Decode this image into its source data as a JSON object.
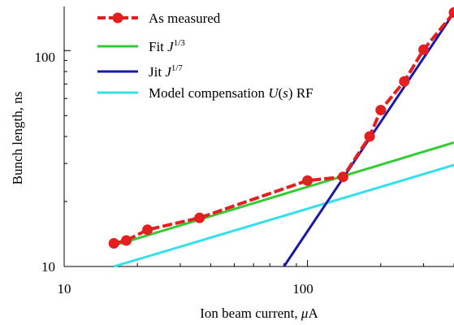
{
  "chart_data": {
    "type": "line",
    "title": "",
    "xlabel": "Ion beam current, μA",
    "ylabel": "Bunch length, ns",
    "xscale": "log",
    "yscale": "log",
    "xlim": [
      10,
      400
    ],
    "ylim": [
      10,
      160
    ],
    "x_tick_labels": [
      "10",
      "100"
    ],
    "y_tick_labels": [
      "10",
      "100"
    ],
    "grid": false,
    "legend_position": "top-left",
    "series": [
      {
        "name": "As measured",
        "color": "#e41f1f",
        "style": "dashed-with-markers",
        "x": [
          16,
          18,
          22,
          36,
          100,
          140,
          180,
          200,
          250,
          300,
          400
        ],
        "y": [
          12.8,
          13.2,
          14.8,
          16.8,
          25,
          26,
          40,
          53,
          72,
          101,
          150
        ]
      },
      {
        "name_prefix": "Fit ",
        "name_var": "J",
        "name_exp": "1/3",
        "color": "#33cc33",
        "style": "solid",
        "x": [
          16,
          400
        ],
        "y": [
          12.5,
          37.5
        ]
      },
      {
        "name_prefix": "Jit ",
        "name_var": "J",
        "name_exp": "1/7",
        "color": "#1a1aa8",
        "style": "solid",
        "x": [
          80,
          400
        ],
        "y": [
          10,
          150
        ]
      },
      {
        "name_prefix": "Model compensation ",
        "name_var": "U",
        "name_paren_open": "(",
        "name_arg": "s",
        "name_paren_close": ")",
        "name_suffix": " RF",
        "color": "#33e0e8",
        "style": "solid",
        "x": [
          16,
          400
        ],
        "y": [
          10,
          29.5
        ]
      }
    ]
  },
  "axes": {
    "xlabel_prefix": "Ion beam current, ",
    "xlabel_mu": "μ",
    "xlabel_unit": "A"
  }
}
